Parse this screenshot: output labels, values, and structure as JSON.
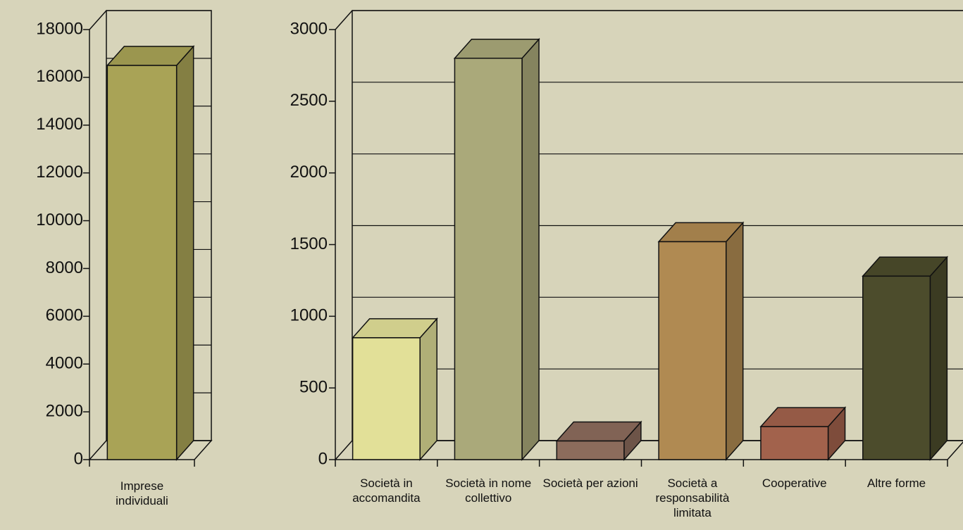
{
  "chart_data": [
    {
      "type": "bar",
      "categories": [
        "Imprese individuali"
      ],
      "values": [
        16500
      ],
      "colors": [
        "#a9a356"
      ],
      "ylim": [
        0,
        18000
      ],
      "yticks": [
        0,
        2000,
        4000,
        6000,
        8000,
        10000,
        12000,
        14000,
        16000,
        18000
      ],
      "grid": true
    },
    {
      "type": "bar",
      "categories": [
        "Società in accomandita",
        "Società in nome collettivo",
        "Società per azioni",
        "Società a responsabilità limitata",
        "Cooperative",
        "Altre forme"
      ],
      "values": [
        850,
        2800,
        130,
        1520,
        230,
        1280
      ],
      "colors": [
        "#e2e098",
        "#aaa97a",
        "#8c6c5c",
        "#b08a52",
        "#a2624c",
        "#4c4c2c"
      ],
      "ylim": [
        0,
        3000
      ],
      "yticks": [
        0,
        500,
        1000,
        1500,
        2000,
        2500,
        3000
      ],
      "grid": true
    }
  ]
}
